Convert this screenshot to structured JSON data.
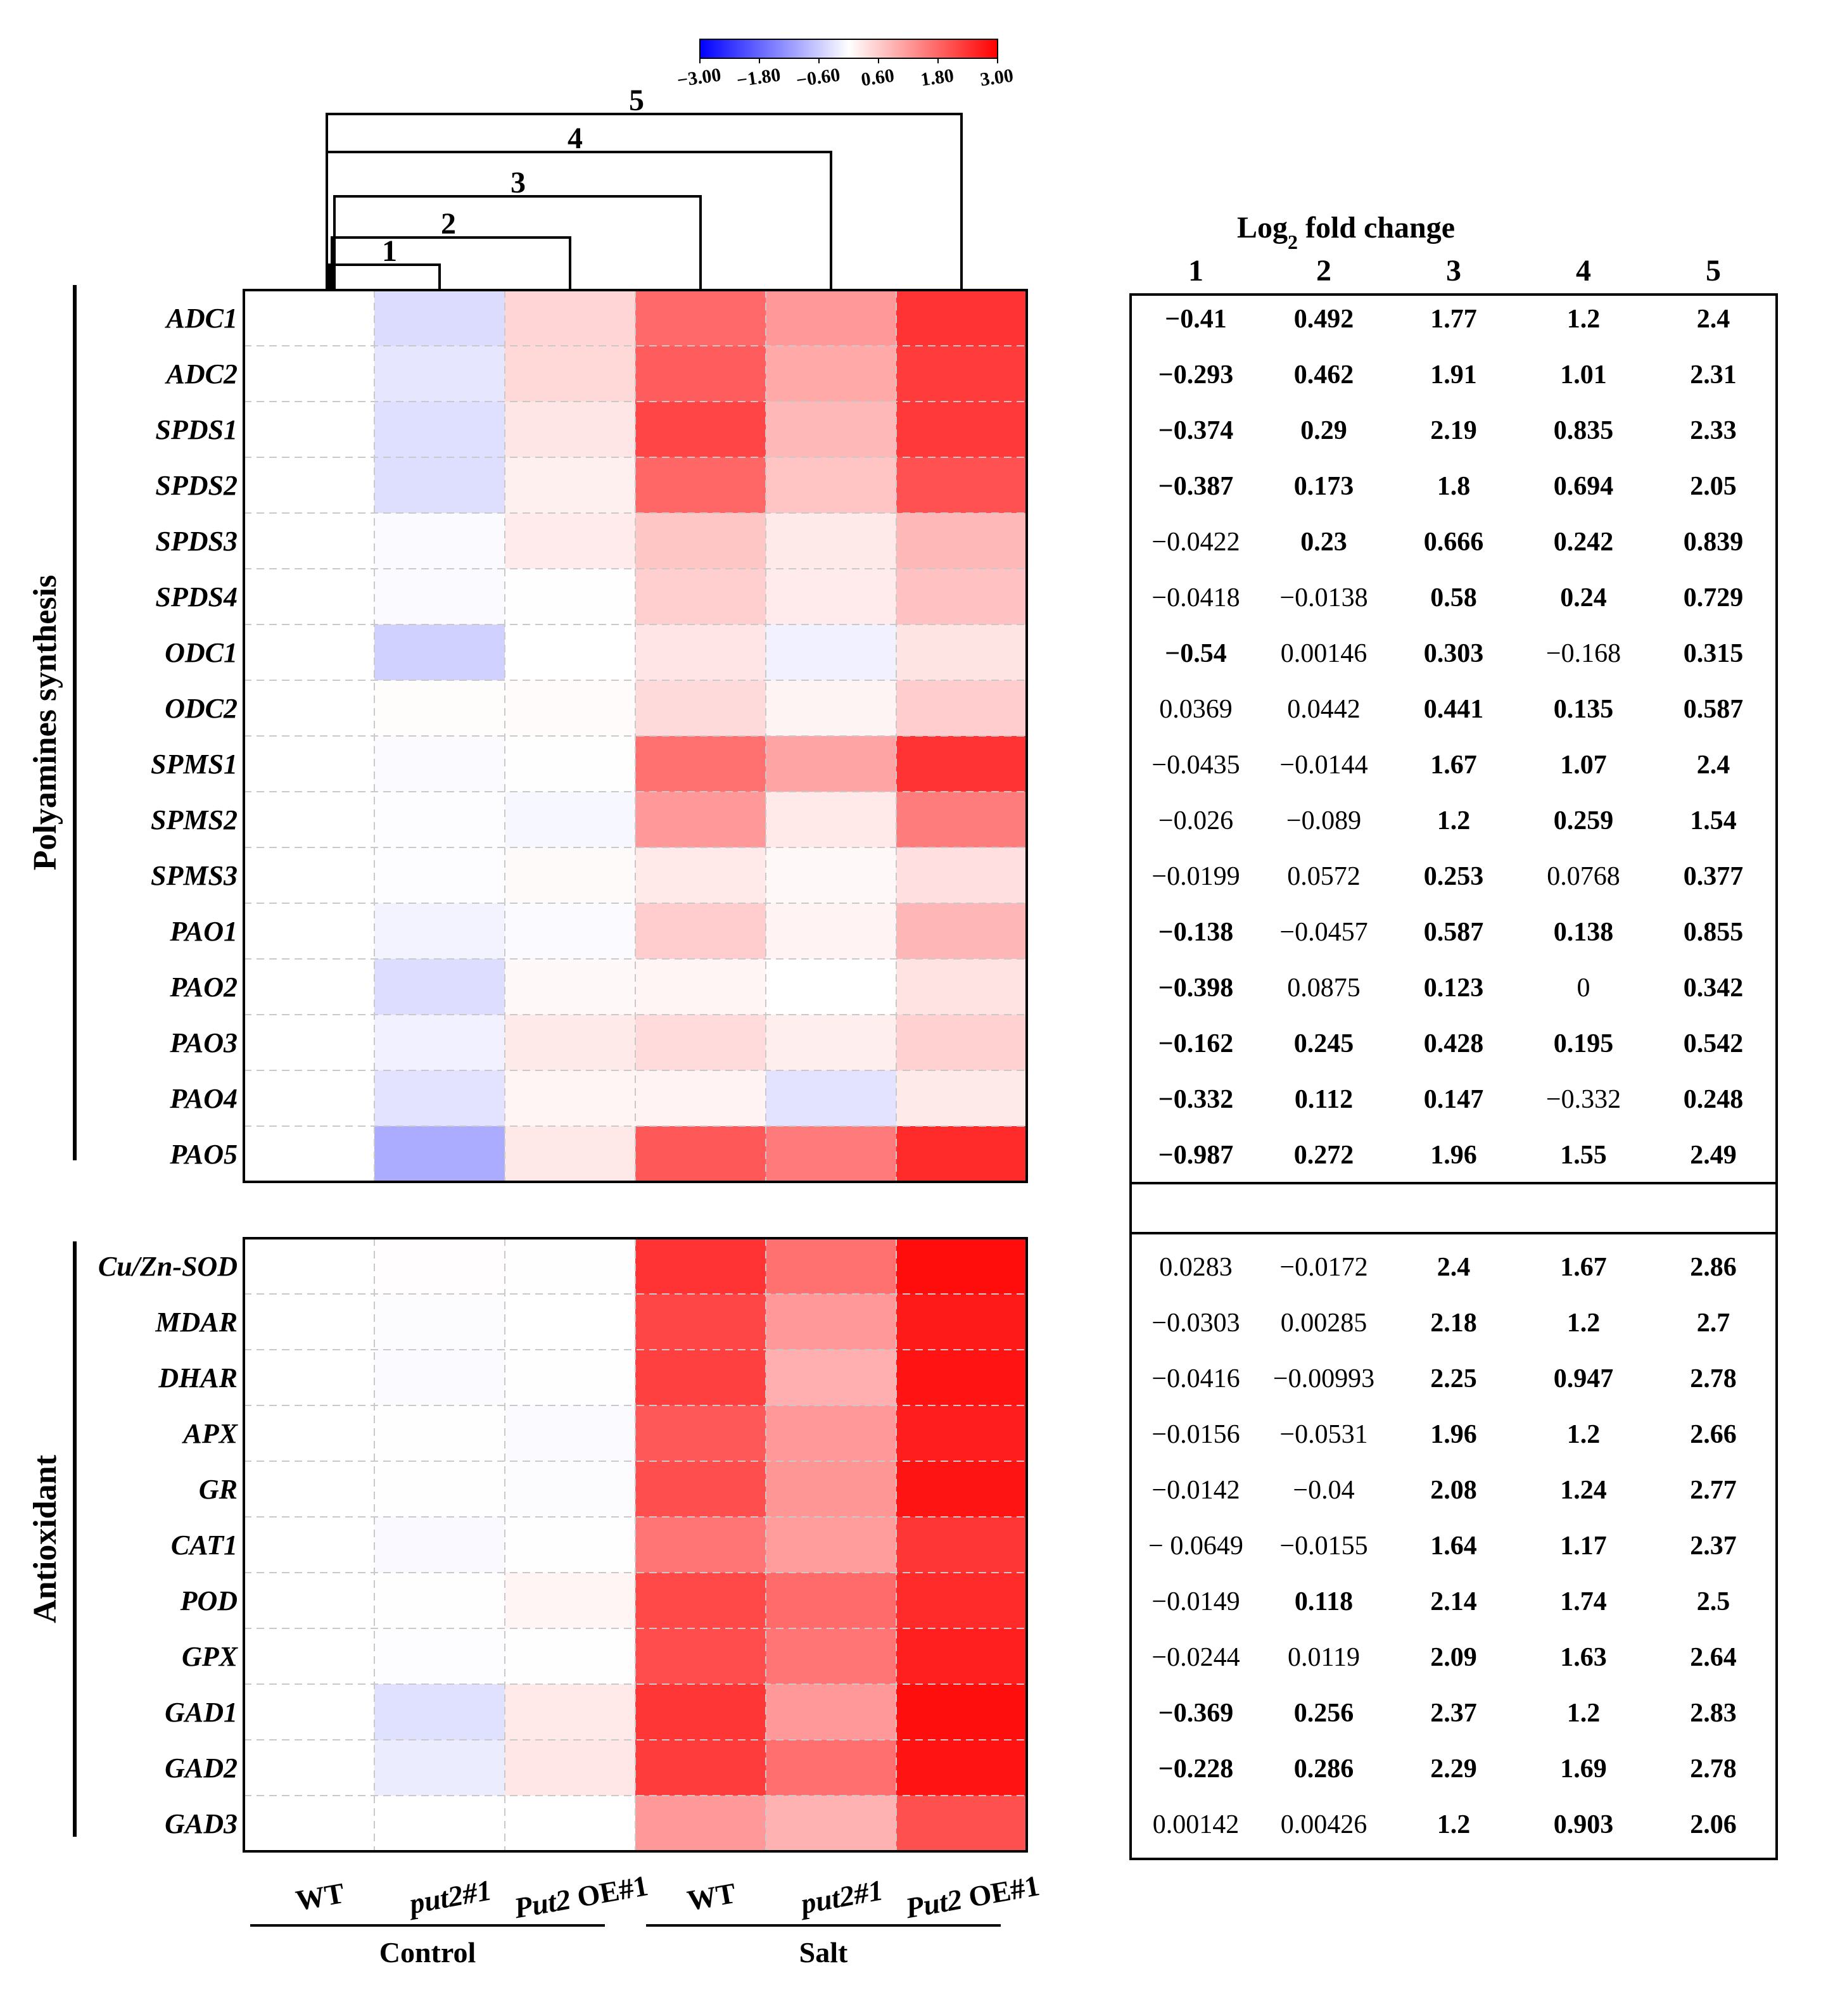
{
  "chart_data": {
    "type": "heatmap",
    "colorbar": {
      "ticks": [
        "-3.00",
        "-1.80",
        "-0.60",
        "0.60",
        "1.80",
        "3.00"
      ],
      "range": [
        -3,
        3
      ],
      "colors": {
        "low": "#0000ff",
        "mid": "#ffffff",
        "high": "#ff0000"
      }
    },
    "columns": [
      {
        "label": "WT",
        "italic": false
      },
      {
        "label": "put2#1",
        "italic": true
      },
      {
        "label": "Put2 OE#1",
        "italic": true,
        "italic_part": "Put2",
        "plain_part": " OE#1"
      },
      {
        "label": "WT",
        "italic": false
      },
      {
        "label": "put2#1",
        "italic": true
      },
      {
        "label": "Put2 OE#1",
        "italic": true,
        "italic_part": "Put2",
        "plain_part": " OE#1"
      }
    ],
    "condition_groups": [
      {
        "label": "Control",
        "columns": [
          0,
          1,
          2
        ]
      },
      {
        "label": "Salt",
        "columns": [
          3,
          4,
          5
        ]
      }
    ],
    "comparisons": [
      {
        "label": "1",
        "from": 0,
        "to": 1
      },
      {
        "label": "2",
        "from": 0,
        "to": 2
      },
      {
        "label": "3",
        "from": 0,
        "to": 3
      },
      {
        "label": "4",
        "from": 0,
        "to": 4
      },
      {
        "label": "5",
        "from": 0,
        "to": 5
      }
    ],
    "table_title_prefix": "Log",
    "table_title_sub": "2",
    "table_title_suffix": " fold change",
    "table_columns": [
      "1",
      "2",
      "3",
      "4",
      "5"
    ],
    "groups": [
      {
        "label": "Polyamines synthesis",
        "genes": [
          {
            "name": "ADC1",
            "values": [
              -0.41,
              0.492,
              1.77,
              1.2,
              2.4
            ],
            "labels": [
              "-0.41",
              "0.492",
              "1.77",
              "1.2",
              "2.4"
            ],
            "bold": [
              true,
              true,
              true,
              true,
              true
            ]
          },
          {
            "name": "ADC2",
            "values": [
              -0.293,
              0.462,
              1.91,
              1.01,
              2.31
            ],
            "labels": [
              "-0.293",
              "0.462",
              "1.91",
              "1.01",
              "2.31"
            ],
            "bold": [
              true,
              true,
              true,
              true,
              true
            ]
          },
          {
            "name": "SPDS1",
            "values": [
              -0.374,
              0.29,
              2.19,
              0.835,
              2.33
            ],
            "labels": [
              "-0.374",
              "0.29",
              "2.19",
              "0.835",
              "2.33"
            ],
            "bold": [
              true,
              true,
              true,
              true,
              true
            ]
          },
          {
            "name": "SPDS2",
            "values": [
              -0.387,
              0.173,
              1.8,
              0.694,
              2.05
            ],
            "labels": [
              "-0.387",
              "0.173",
              "1.8",
              "0.694",
              "2.05"
            ],
            "bold": [
              true,
              true,
              true,
              true,
              true
            ]
          },
          {
            "name": "SPDS3",
            "values": [
              -0.0422,
              0.23,
              0.666,
              0.242,
              0.839
            ],
            "labels": [
              "-0.0422",
              "0.23",
              "0.666",
              "0.242",
              "0.839"
            ],
            "bold": [
              false,
              true,
              true,
              true,
              true
            ]
          },
          {
            "name": "SPDS4",
            "values": [
              -0.0418,
              -0.0138,
              0.58,
              0.24,
              0.729
            ],
            "labels": [
              "-0.0418",
              "-0.0138",
              "0.58",
              "0.24",
              "0.729"
            ],
            "bold": [
              false,
              false,
              true,
              true,
              true
            ]
          },
          {
            "name": "ODC1",
            "values": [
              -0.54,
              0.00146,
              0.303,
              -0.168,
              0.315
            ],
            "labels": [
              "-0.54",
              "0.00146",
              "0.303",
              "-0.168",
              "0.315"
            ],
            "bold": [
              true,
              false,
              true,
              false,
              true
            ]
          },
          {
            "name": "ODC2",
            "values": [
              0.0369,
              0.0442,
              0.441,
              0.135,
              0.587
            ],
            "labels": [
              "0.0369",
              "0.0442",
              "0.441",
              "0.135",
              "0.587"
            ],
            "bold": [
              false,
              false,
              true,
              true,
              true
            ]
          },
          {
            "name": "SPMS1",
            "values": [
              -0.0435,
              -0.0144,
              1.67,
              1.07,
              2.4
            ],
            "labels": [
              "-0.0435",
              "-0.0144",
              "1.67",
              "1.07",
              "2.4"
            ],
            "bold": [
              false,
              false,
              true,
              true,
              true
            ]
          },
          {
            "name": "SPMS2",
            "values": [
              -0.026,
              -0.089,
              1.2,
              0.259,
              1.54
            ],
            "labels": [
              "-0.026",
              "-0.089",
              "1.2",
              "0.259",
              "1.54"
            ],
            "bold": [
              false,
              false,
              true,
              true,
              true
            ]
          },
          {
            "name": "SPMS3",
            "values": [
              -0.0199,
              0.0572,
              0.253,
              0.0768,
              0.377
            ],
            "labels": [
              "-0.0199",
              "0.0572",
              "0.253",
              "0.0768",
              "0.377"
            ],
            "bold": [
              false,
              false,
              true,
              false,
              true
            ]
          },
          {
            "name": "PAO1",
            "values": [
              -0.138,
              -0.0457,
              0.587,
              0.138,
              0.855
            ],
            "labels": [
              "-0.138",
              "-0.0457",
              "0.587",
              "0.138",
              "0.855"
            ],
            "bold": [
              true,
              false,
              true,
              true,
              true
            ]
          },
          {
            "name": "PAO2",
            "values": [
              -0.398,
              0.0875,
              0.123,
              0,
              0.342
            ],
            "labels": [
              "-0.398",
              "0.0875",
              "0.123",
              "0",
              "0.342"
            ],
            "bold": [
              true,
              false,
              true,
              false,
              true
            ]
          },
          {
            "name": "PAO3",
            "values": [
              -0.162,
              0.245,
              0.428,
              0.195,
              0.542
            ],
            "labels": [
              "-0.162",
              "0.245",
              "0.428",
              "0.195",
              "0.542"
            ],
            "bold": [
              true,
              true,
              true,
              true,
              true
            ]
          },
          {
            "name": "PAO4",
            "values": [
              -0.332,
              0.112,
              0.147,
              -0.332,
              0.248
            ],
            "labels": [
              "-0.332",
              "0.112",
              "0.147",
              "-0.332",
              "0.248"
            ],
            "bold": [
              true,
              true,
              true,
              false,
              true
            ]
          },
          {
            "name": "PAO5",
            "values": [
              -0.987,
              0.272,
              1.96,
              1.55,
              2.49
            ],
            "labels": [
              "-0.987",
              "0.272",
              "1.96",
              "1.55",
              "2.49"
            ],
            "bold": [
              true,
              true,
              true,
              true,
              true
            ]
          }
        ]
      },
      {
        "label": "Antioxidant",
        "genes": [
          {
            "name": "Cu/Zn-SOD",
            "values": [
              0.0283,
              -0.0172,
              2.4,
              1.67,
              2.86
            ],
            "labels": [
              "0.0283",
              "-0.0172",
              "2.4",
              "1.67",
              "2.86"
            ],
            "bold": [
              false,
              false,
              true,
              true,
              true
            ]
          },
          {
            "name": "MDAR",
            "values": [
              -0.0303,
              0.00285,
              2.18,
              1.2,
              2.7
            ],
            "labels": [
              "-0.0303",
              "0.00285",
              "2.18",
              "1.2",
              "2.7"
            ],
            "bold": [
              false,
              false,
              true,
              true,
              true
            ]
          },
          {
            "name": "DHAR",
            "values": [
              -0.0416,
              -0.00993,
              2.25,
              0.947,
              2.78
            ],
            "labels": [
              "-0.0416",
              "-0.00993",
              "2.25",
              "0.947",
              "2.78"
            ],
            "bold": [
              false,
              false,
              true,
              true,
              true
            ]
          },
          {
            "name": "APX",
            "values": [
              -0.0156,
              -0.0531,
              1.96,
              1.2,
              2.66
            ],
            "labels": [
              "-0.0156",
              "-0.0531",
              "1.96",
              "1.2",
              "2.66"
            ],
            "bold": [
              false,
              false,
              true,
              true,
              true
            ]
          },
          {
            "name": "GR",
            "values": [
              -0.0142,
              -0.04,
              2.08,
              1.24,
              2.77
            ],
            "labels": [
              "-0.0142",
              "-0.04",
              "2.08",
              "1.24",
              "2.77"
            ],
            "bold": [
              false,
              false,
              true,
              true,
              true
            ]
          },
          {
            "name": "CAT1",
            "values": [
              -0.0649,
              -0.0155,
              1.64,
              1.17,
              2.37
            ],
            "labels": [
              "- 0.0649",
              "-0.0155",
              "1.64",
              "1.17",
              "2.37"
            ],
            "bold": [
              false,
              false,
              true,
              true,
              true
            ]
          },
          {
            "name": "POD",
            "values": [
              -0.0149,
              0.118,
              2.14,
              1.74,
              2.5
            ],
            "labels": [
              "-0.0149",
              "0.118",
              "2.14",
              "1.74",
              "2.5"
            ],
            "bold": [
              false,
              true,
              true,
              true,
              true
            ]
          },
          {
            "name": "GPX",
            "values": [
              -0.0244,
              0.0119,
              2.09,
              1.63,
              2.64
            ],
            "labels": [
              "-0.0244",
              "0.0119",
              "2.09",
              "1.63",
              "2.64"
            ],
            "bold": [
              false,
              false,
              true,
              true,
              true
            ]
          },
          {
            "name": "GAD1",
            "values": [
              -0.369,
              0.256,
              2.37,
              1.2,
              2.83
            ],
            "labels": [
              "-0.369",
              "0.256",
              "2.37",
              "1.2",
              "2.83"
            ],
            "bold": [
              true,
              true,
              true,
              true,
              true
            ]
          },
          {
            "name": "GAD2",
            "values": [
              -0.228,
              0.286,
              2.29,
              1.69,
              2.78
            ],
            "labels": [
              "-0.228",
              "0.286",
              "2.29",
              "1.69",
              "2.78"
            ],
            "bold": [
              true,
              true,
              true,
              true,
              true
            ]
          },
          {
            "name": "GAD3",
            "values": [
              0.00142,
              0.00426,
              1.2,
              0.903,
              2.06
            ],
            "labels": [
              "0.00142",
              "0.00426",
              "1.2",
              "0.903",
              "2.06"
            ],
            "bold": [
              false,
              false,
              true,
              true,
              true
            ]
          }
        ]
      }
    ]
  }
}
